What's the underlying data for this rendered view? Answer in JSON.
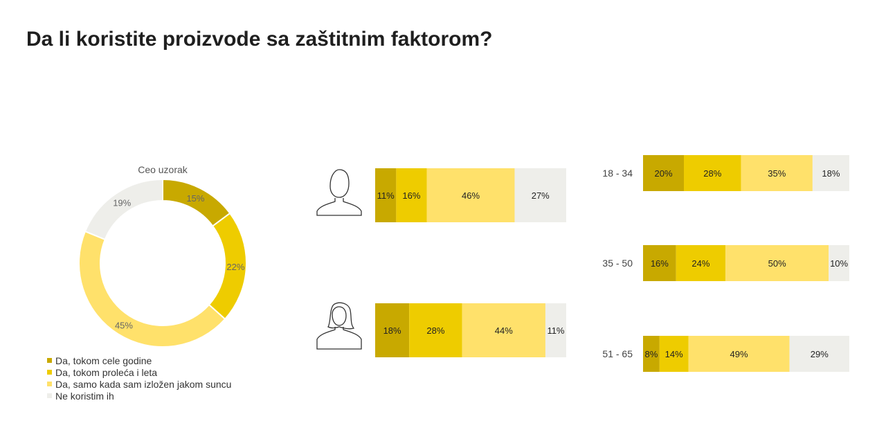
{
  "page": {
    "title": "Da li koristite proizvode sa zaštitnim faktorom?"
  },
  "colors": {
    "cat1": "#C8A900",
    "cat2": "#EECC00",
    "cat3": "#FFE16B",
    "cat4": "#EEEEEA"
  },
  "icons": [
    "male-person-icon",
    "female-person-icon"
  ],
  "chart_data": [
    {
      "type": "pie",
      "subtype": "donut",
      "title": "Ceo uzorak",
      "categories": [
        "Da, tokom cele godine",
        "Da, tokom proleća i leta",
        "Da, samo kada sam izložen jakom suncu",
        "Ne koristim ih"
      ],
      "values": [
        15,
        22,
        45,
        19
      ],
      "labels": [
        "15%",
        "22%",
        "45%",
        "19%"
      ],
      "legend": "bottom-left"
    },
    {
      "type": "bar",
      "subtype": "stacked-horizontal-100",
      "categories": [
        "male",
        "female"
      ],
      "series": [
        {
          "name": "Da, tokom cele godine",
          "values": [
            11,
            18
          ],
          "labels": [
            "11%",
            "18%"
          ]
        },
        {
          "name": "Da, tokom proleća i leta",
          "values": [
            16,
            28
          ],
          "labels": [
            "16%",
            "28%"
          ]
        },
        {
          "name": "Da, samo kada sam izložen jakom suncu",
          "values": [
            46,
            44
          ],
          "labels": [
            "46%",
            "44%"
          ]
        },
        {
          "name": "Ne koristim ih",
          "values": [
            27,
            11
          ],
          "labels": [
            "27%",
            "11%"
          ]
        }
      ]
    },
    {
      "type": "bar",
      "subtype": "stacked-horizontal-100",
      "categories": [
        "18 - 34",
        "35 - 50",
        "51 - 65"
      ],
      "series": [
        {
          "name": "Da, tokom cele godine",
          "values": [
            20,
            16,
            8
          ],
          "labels": [
            "20%",
            "16%",
            "8%"
          ]
        },
        {
          "name": "Da, tokom proleća i leta",
          "values": [
            28,
            24,
            14
          ],
          "labels": [
            "28%",
            "24%",
            "14%"
          ]
        },
        {
          "name": "Da, samo kada sam izložen jakom suncu",
          "values": [
            35,
            50,
            49
          ],
          "labels": [
            "35%",
            "50%",
            "49%"
          ]
        },
        {
          "name": "Ne koristim ih",
          "values": [
            18,
            10,
            29
          ],
          "labels": [
            "18%",
            "10%",
            "29%"
          ]
        }
      ]
    }
  ]
}
